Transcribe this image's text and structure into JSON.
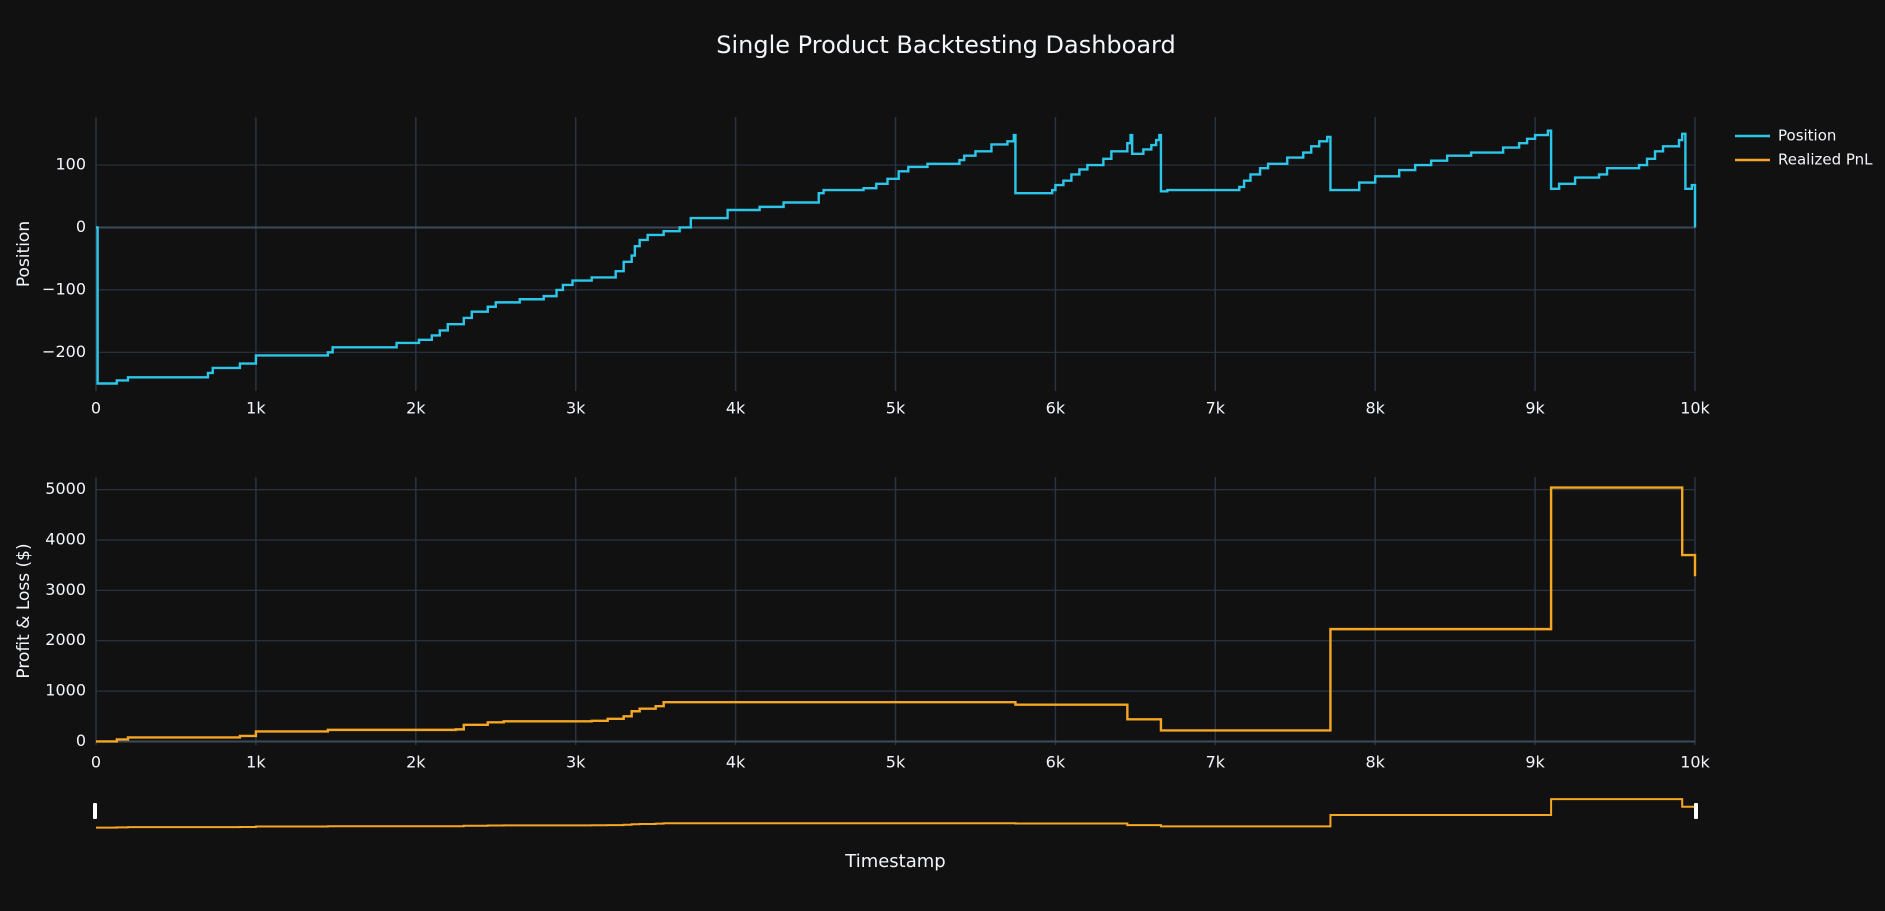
{
  "chart_data": [
    {
      "type": "line",
      "title": "Single Product Backtesting Dashboard",
      "line_shape": "hv",
      "ylabel": "Position",
      "x": [
        0,
        10,
        130,
        200,
        700,
        730,
        900,
        1000,
        1450,
        1480,
        1880,
        2020,
        2100,
        2150,
        2200,
        2300,
        2350,
        2450,
        2500,
        2650,
        2800,
        2880,
        2920,
        2980,
        3100,
        3250,
        3300,
        3350,
        3370,
        3400,
        3450,
        3550,
        3650,
        3720,
        3950,
        4150,
        4300,
        4520,
        4550,
        4800,
        4880,
        4950,
        5020,
        5080,
        5200,
        5400,
        5430,
        5500,
        5600,
        5700,
        5740,
        5750,
        5980,
        6000,
        6050,
        6100,
        6150,
        6200,
        6300,
        6350,
        6450,
        6470,
        6480,
        6550,
        6600,
        6630,
        6650,
        6660,
        6700,
        7150,
        7180,
        7220,
        7280,
        7330,
        7450,
        7550,
        7600,
        7650,
        7700,
        7720,
        7900,
        8000,
        8150,
        8250,
        8350,
        8450,
        8600,
        8800,
        8900,
        8950,
        9000,
        9080,
        9100,
        9150,
        9250,
        9400,
        9450,
        9650,
        9700,
        9750,
        9800,
        9900,
        9920,
        9940,
        9980,
        10000
      ],
      "series": [
        {
          "name": "Position",
          "color": "#2cc6ea",
          "values": [
            0,
            -250,
            -245,
            -240,
            -233,
            -225,
            -218,
            -205,
            -200,
            -192,
            -185,
            -180,
            -173,
            -165,
            -155,
            -145,
            -135,
            -127,
            -120,
            -115,
            -110,
            -100,
            -92,
            -85,
            -80,
            -70,
            -55,
            -45,
            -30,
            -20,
            -12,
            -6,
            0,
            15,
            28,
            33,
            40,
            55,
            60,
            63,
            70,
            78,
            90,
            97,
            102,
            108,
            115,
            122,
            133,
            138,
            148,
            55,
            60,
            68,
            75,
            85,
            93,
            100,
            110,
            122,
            135,
            148,
            118,
            125,
            132,
            140,
            148,
            58,
            60,
            65,
            75,
            85,
            95,
            102,
            112,
            120,
            130,
            138,
            145,
            60,
            72,
            82,
            92,
            100,
            107,
            115,
            120,
            128,
            135,
            142,
            148,
            155,
            62,
            70,
            80,
            85,
            95,
            100,
            110,
            122,
            130,
            140,
            150,
            62,
            68,
            0
          ]
        }
      ],
      "xlim": [
        0,
        10000
      ],
      "xticks": [
        0,
        {
          "value": 1000,
          "label": "1k"
        },
        {
          "value": 2000,
          "label": "2k"
        },
        {
          "value": 3000,
          "label": "3k"
        },
        {
          "value": 4000,
          "label": "4k"
        },
        {
          "value": 5000,
          "label": "5k"
        },
        {
          "value": 6000,
          "label": "6k"
        },
        {
          "value": 7000,
          "label": "7k"
        },
        {
          "value": 8000,
          "label": "8k"
        },
        {
          "value": 9000,
          "label": "9k"
        },
        {
          "value": 10000,
          "label": "10k"
        }
      ],
      "ylim": [
        -262,
        177
      ],
      "yticks": [
        {
          "value": -200,
          "label": "−200"
        },
        {
          "value": -100,
          "label": "−100"
        },
        0,
        100
      ],
      "grid": true
    },
    {
      "type": "line",
      "line_shape": "hv",
      "ylabel": "Profit & Loss ($)",
      "xlabel": "Timestamp",
      "rangeslider": true,
      "x": [
        0,
        130,
        200,
        900,
        1000,
        1450,
        2250,
        2300,
        2450,
        2550,
        3100,
        3200,
        3300,
        3350,
        3400,
        3500,
        3550,
        5750,
        6450,
        6660,
        7720,
        9100,
        9920,
        10000
      ],
      "series": [
        {
          "name": "Realized PnL",
          "color": "#f5a623",
          "values": [
            0,
            40,
            80,
            110,
            200,
            230,
            240,
            330,
            380,
            400,
            410,
            450,
            500,
            600,
            650,
            700,
            780,
            730,
            440,
            220,
            2230,
            5040,
            3700,
            3280
          ]
        }
      ],
      "xlim": [
        0,
        10000
      ],
      "xticks": [
        0,
        {
          "value": 1000,
          "label": "1k"
        },
        {
          "value": 2000,
          "label": "2k"
        },
        {
          "value": 3000,
          "label": "3k"
        },
        {
          "value": 4000,
          "label": "4k"
        },
        {
          "value": 5000,
          "label": "5k"
        },
        {
          "value": 6000,
          "label": "6k"
        },
        {
          "value": 7000,
          "label": "7k"
        },
        {
          "value": 8000,
          "label": "8k"
        },
        {
          "value": 9000,
          "label": "9k"
        },
        {
          "value": 10000,
          "label": "10k"
        }
      ],
      "ylim": [
        -70,
        5250
      ],
      "yticks": [
        0,
        1000,
        2000,
        3000,
        4000,
        5000
      ],
      "grid": true
    }
  ]
}
